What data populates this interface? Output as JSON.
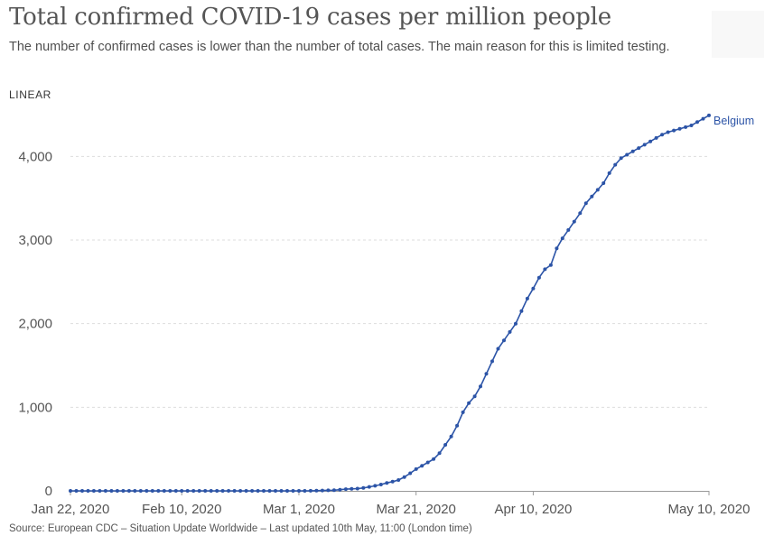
{
  "title": "Total confirmed COVID-19 cases per million people",
  "subtitle": "The number of confirmed cases is lower than the number of total cases. The main reason for this is limited testing.",
  "scale_toggle": "LINEAR",
  "source": "Source: European CDC – Situation Update Worldwide – Last updated 10th May, 11:00 (London time)",
  "colors": {
    "series": "#2c54a7",
    "grid": "#dddddd",
    "axis": "#999999"
  },
  "chart_data": {
    "type": "line",
    "title": "Total confirmed COVID-19 cases per million people",
    "xlabel": "",
    "ylabel": "",
    "x_range": [
      "2020-01-22",
      "2020-05-10"
    ],
    "ylim": [
      0,
      4500
    ],
    "y_ticks": [
      0,
      1000,
      2000,
      3000,
      4000
    ],
    "y_tick_labels": [
      "0",
      "1,000",
      "2,000",
      "3,000",
      "4,000"
    ],
    "x_ticks": [
      "2020-01-22",
      "2020-02-10",
      "2020-03-01",
      "2020-03-21",
      "2020-04-10",
      "2020-05-10"
    ],
    "x_tick_labels": [
      "Jan 22, 2020",
      "Feb 10, 2020",
      "Mar 1, 2020",
      "Mar 21, 2020",
      "Apr 10, 2020",
      "May 10, 2020"
    ],
    "grid": true,
    "series": [
      {
        "name": "Belgium",
        "x": [
          "2020-01-22",
          "2020-02-05",
          "2020-03-01",
          "2020-03-03",
          "2020-03-05",
          "2020-03-07",
          "2020-03-09",
          "2020-03-11",
          "2020-03-12",
          "2020-03-13",
          "2020-03-14",
          "2020-03-15",
          "2020-03-16",
          "2020-03-17",
          "2020-03-18",
          "2020-03-19",
          "2020-03-20",
          "2020-03-21",
          "2020-03-22",
          "2020-03-23",
          "2020-03-24",
          "2020-03-25",
          "2020-03-26",
          "2020-03-27",
          "2020-03-28",
          "2020-03-29",
          "2020-03-30",
          "2020-03-31",
          "2020-04-01",
          "2020-04-02",
          "2020-04-03",
          "2020-04-04",
          "2020-04-05",
          "2020-04-06",
          "2020-04-07",
          "2020-04-08",
          "2020-04-09",
          "2020-04-10",
          "2020-04-11",
          "2020-04-12",
          "2020-04-13",
          "2020-04-14",
          "2020-04-15",
          "2020-04-16",
          "2020-04-17",
          "2020-04-18",
          "2020-04-19",
          "2020-04-20",
          "2020-04-21",
          "2020-04-22",
          "2020-04-23",
          "2020-04-24",
          "2020-04-25",
          "2020-04-26",
          "2020-04-27",
          "2020-04-28",
          "2020-04-29",
          "2020-04-30",
          "2020-05-01",
          "2020-05-02",
          "2020-05-03",
          "2020-05-04",
          "2020-05-05",
          "2020-05-06",
          "2020-05-07",
          "2020-05-08",
          "2020-05-09",
          "2020-05-10"
        ],
        "y": [
          0,
          0,
          0,
          1,
          4,
          8,
          21,
          27,
          35,
          48,
          60,
          75,
          95,
          110,
          130,
          165,
          210,
          260,
          300,
          340,
          380,
          450,
          550,
          650,
          780,
          940,
          1050,
          1130,
          1250,
          1400,
          1550,
          1700,
          1800,
          1900,
          2000,
          2150,
          2300,
          2420,
          2550,
          2650,
          2700,
          2900,
          3020,
          3120,
          3220,
          3320,
          3440,
          3520,
          3600,
          3680,
          3800,
          3900,
          3980,
          4020,
          4060,
          4100,
          4140,
          4180,
          4220,
          4260,
          4290,
          4310,
          4330,
          4350,
          4370,
          4410,
          4450,
          4490
        ]
      }
    ]
  }
}
